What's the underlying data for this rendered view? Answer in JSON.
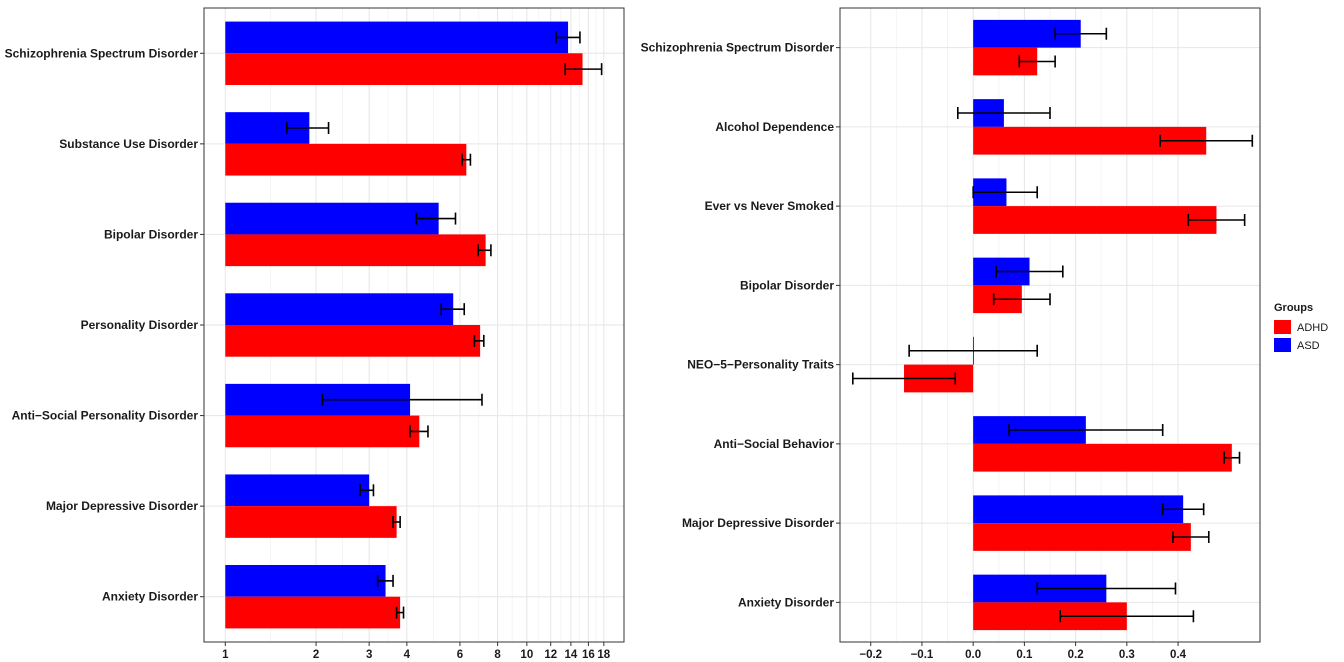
{
  "chart_data": [
    {
      "type": "bar",
      "orientation": "horizontal",
      "x_scale": "log",
      "xlim": [
        0.85,
        21
      ],
      "x_ticks": [
        1,
        2,
        3,
        4,
        6,
        8,
        10,
        12,
        14,
        16,
        18
      ],
      "x_tick_labels": [
        "1",
        "2",
        "3",
        "4",
        "6",
        "8",
        "10",
        "12",
        "14",
        "16",
        "18"
      ],
      "categories": [
        "Schizophrenia Spectrum Disorder",
        "Substance Use Disorder",
        "Bipolar Disorder",
        "Personality Disorder",
        "Anti−Social Personality Disorder",
        "Major Depressive Disorder",
        "Anxiety Disorder"
      ],
      "series": [
        {
          "name": "ASD",
          "color": "#0000ff",
          "values": [
            13.7,
            1.9,
            5.1,
            5.7,
            4.1,
            3.0,
            3.4
          ],
          "error_low": [
            12.5,
            1.6,
            4.3,
            5.2,
            2.1,
            2.8,
            3.2
          ],
          "error_high": [
            15.0,
            2.2,
            5.8,
            6.2,
            7.1,
            3.1,
            3.6
          ]
        },
        {
          "name": "ADHD",
          "color": "#ff0000",
          "values": [
            15.3,
            6.3,
            7.3,
            7.0,
            4.4,
            3.7,
            3.8
          ],
          "error_low": [
            13.4,
            6.1,
            6.9,
            6.7,
            4.1,
            3.6,
            3.7
          ],
          "error_high": [
            17.7,
            6.5,
            7.6,
            7.2,
            4.7,
            3.8,
            3.9
          ]
        }
      ],
      "bar_order_top_to_bottom_within_category": [
        "ASD",
        "ADHD"
      ],
      "grid": true,
      "legend": "none"
    },
    {
      "type": "bar",
      "orientation": "horizontal",
      "xlim": [
        -0.26,
        0.56
      ],
      "x_ticks": [
        -0.2,
        -0.1,
        0.0,
        0.1,
        0.2,
        0.3,
        0.4
      ],
      "x_tick_labels": [
        "−0.2",
        "−0.1",
        "0.0",
        "0.1",
        "0.2",
        "0.3",
        "0.4"
      ],
      "categories": [
        "Schizophrenia Spectrum Disorder",
        "Alcohol Dependence",
        "Ever vs Never Smoked",
        "Bipolar Disorder",
        "NEO−5−Personality Traits",
        "Anti−Social Behavior",
        "Major Depressive Disorder",
        "Anxiety Disorder"
      ],
      "series": [
        {
          "name": "ASD",
          "color": "#0000ff",
          "values": [
            0.21,
            0.06,
            0.065,
            0.11,
            0.0,
            0.22,
            0.41,
            0.26
          ],
          "error_low": [
            0.16,
            -0.03,
            0.0,
            0.045,
            -0.125,
            0.07,
            0.37,
            0.125
          ],
          "error_high": [
            0.26,
            0.15,
            0.125,
            0.175,
            0.125,
            0.37,
            0.45,
            0.395
          ]
        },
        {
          "name": "ADHD",
          "color": "#ff0000",
          "values": [
            0.125,
            0.455,
            0.475,
            0.095,
            -0.135,
            0.505,
            0.425,
            0.3
          ],
          "error_low": [
            0.09,
            0.365,
            0.42,
            0.04,
            -0.235,
            0.49,
            0.39,
            0.17
          ],
          "error_high": [
            0.16,
            0.545,
            0.53,
            0.15,
            -0.035,
            0.52,
            0.46,
            0.43
          ]
        }
      ],
      "bar_order_top_to_bottom_within_category": [
        "ASD",
        "ADHD"
      ],
      "grid": true,
      "legend": "right"
    }
  ],
  "legend": {
    "title": "Groups",
    "items": [
      {
        "label": "ADHD",
        "color": "#ff0000"
      },
      {
        "label": "ASD",
        "color": "#0000ff"
      }
    ]
  }
}
